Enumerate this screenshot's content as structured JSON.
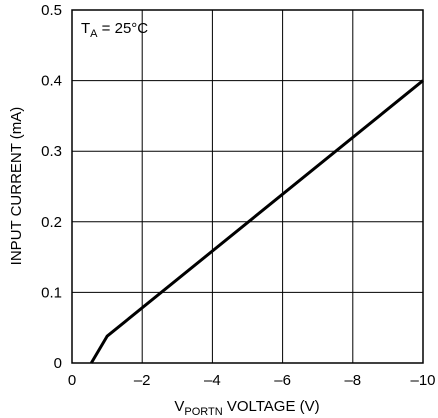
{
  "chart_data": {
    "type": "line",
    "title": "",
    "xlabel": {
      "main": "V",
      "subscript": "PORTN",
      "rest": " VOLTAGE (V)"
    },
    "ylabel": "INPUT CURRENT (mA)",
    "annotation": {
      "main": "T",
      "subscript": "A",
      "rest": " = 25°C"
    },
    "xlim": [
      0,
      -10
    ],
    "ylim": [
      0,
      0.5
    ],
    "x_ticks": [
      {
        "value": 0,
        "label": "0"
      },
      {
        "value": -2,
        "label": "–2"
      },
      {
        "value": -4,
        "label": "–4"
      },
      {
        "value": -6,
        "label": "–6"
      },
      {
        "value": -8,
        "label": "–8"
      },
      {
        "value": -10,
        "label": "–10"
      }
    ],
    "y_ticks": [
      {
        "value": 0,
        "label": "0"
      },
      {
        "value": 0.1,
        "label": "0.1"
      },
      {
        "value": 0.2,
        "label": "0.2"
      },
      {
        "value": 0.3,
        "label": "0.3"
      },
      {
        "value": 0.4,
        "label": "0.4"
      },
      {
        "value": 0.5,
        "label": "0.5"
      }
    ],
    "grid": true,
    "series": [
      {
        "x": [
          -0.55,
          -1.0,
          -10.0
        ],
        "y": [
          0.0,
          0.038,
          0.4
        ]
      }
    ],
    "colors": {
      "line": "#000000",
      "grid": "#000000",
      "frame": "#000000"
    }
  }
}
